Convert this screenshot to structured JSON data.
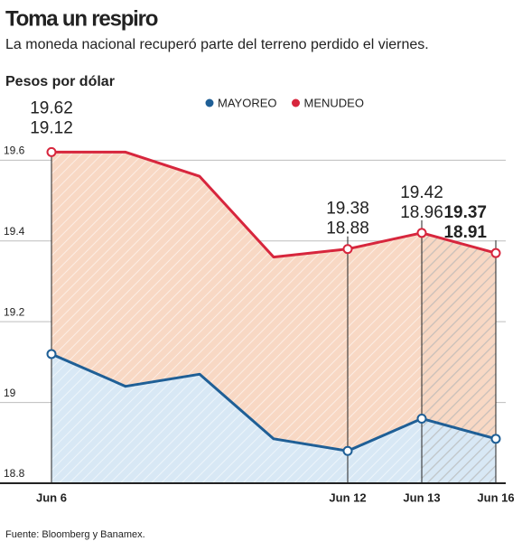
{
  "chart_data": {
    "type": "line",
    "title": "Toma un respiro",
    "subtitle": "La moneda nacional recuperó parte del terreno perdido el viernes.",
    "y_label": "Pesos por dólar",
    "source": "Fuente: Bloomberg y Banamex.",
    "categories": [
      "Jun 6",
      null,
      null,
      null,
      "Jun 12",
      "Jun 13",
      "Jun 16"
    ],
    "series": [
      {
        "name": "MAYOREO",
        "color": "#1f5f96",
        "values": [
          19.12,
          19.04,
          19.07,
          18.91,
          18.88,
          18.96,
          18.91
        ],
        "value_labels": [
          "19.12",
          null,
          null,
          null,
          "18.88",
          "18.96",
          "18.91"
        ]
      },
      {
        "name": "MENUDEO",
        "color": "#d7263d",
        "values": [
          19.62,
          19.62,
          19.56,
          19.36,
          19.38,
          19.42,
          19.37
        ],
        "value_labels": [
          "19.62",
          null,
          null,
          null,
          "19.38",
          "19.42",
          "19.37"
        ]
      }
    ],
    "ylim": [
      18.8,
      19.65
    ],
    "yticks": [
      18.8,
      19.0,
      19.2,
      19.4,
      19.6
    ],
    "grid": true,
    "legend": "top"
  }
}
